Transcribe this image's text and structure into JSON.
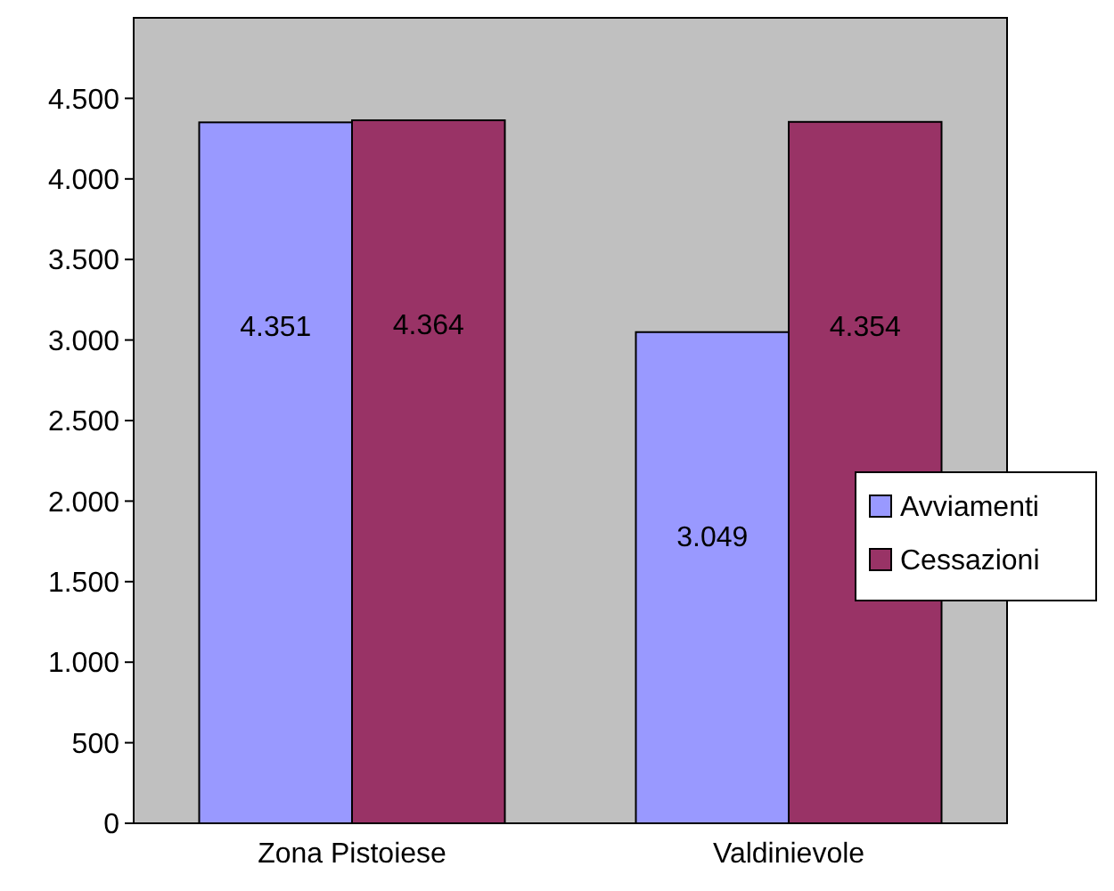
{
  "chart_data": {
    "type": "bar",
    "categories": [
      "Zona Pistoiese",
      "Valdinievole"
    ],
    "series": [
      {
        "name": "Avviamenti",
        "color": "#9999ff",
        "values": [
          4351,
          3049
        ],
        "value_labels": [
          "4.351",
          "3.049"
        ]
      },
      {
        "name": "Cessazioni",
        "color": "#993366",
        "values": [
          4364,
          4354
        ],
        "value_labels": [
          "4.364",
          "4.354"
        ]
      }
    ],
    "ylim": [
      0,
      5000
    ],
    "yticks": [
      0,
      500,
      {
        "value": 1000,
        "label": "1.000"
      },
      {
        "value": 1500,
        "label": "1.500"
      },
      {
        "value": 2000,
        "label": "2.000"
      },
      {
        "value": 2500,
        "label": "2.500"
      },
      {
        "value": 3000,
        "label": "3.000"
      },
      {
        "value": 3500,
        "label": "3.500"
      },
      {
        "value": 4000,
        "label": "4.000"
      },
      {
        "value": 4500,
        "label": "4.500"
      }
    ],
    "grid": false,
    "legend": "right"
  }
}
